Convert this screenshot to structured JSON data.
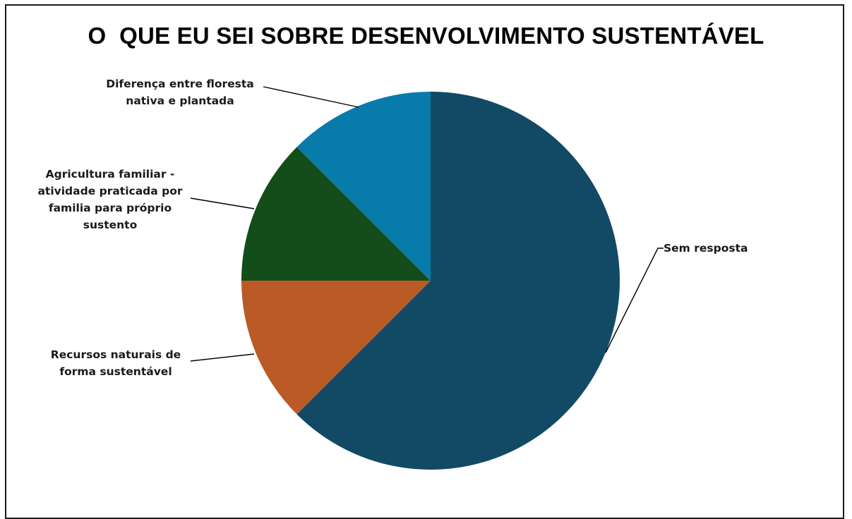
{
  "chart_data": {
    "type": "pie",
    "title": "O  QUE EU SEI SOBRE DESENVOLVIMENTO SUSTENTÁVEL",
    "slices": [
      {
        "name": "Sem resposta",
        "lines": [
          "Sem resposta"
        ],
        "value": 62.5,
        "color": "#124a66"
      },
      {
        "name": "Recursos naturais de forma sustentável",
        "lines": [
          "Recursos naturais de",
          "forma sustentável"
        ],
        "value": 12.5,
        "color": "#ba5a26"
      },
      {
        "name": "Agricultura familiar - atividade praticada por familia para próprio sustento",
        "lines": [
          "Agricultura familiar -",
          "atividade praticada por",
          "familia para próprio",
          "sustento"
        ],
        "value": 12.5,
        "color": "#134d1a"
      },
      {
        "name": "Diferença entre floresta nativa e plantada",
        "lines": [
          "Diferença entre floresta",
          "nativa e plantada"
        ],
        "value": 12.5,
        "color": "#087bab"
      }
    ],
    "start_angle": "12 o'clock",
    "direction": "clockwise",
    "legend": "none"
  }
}
